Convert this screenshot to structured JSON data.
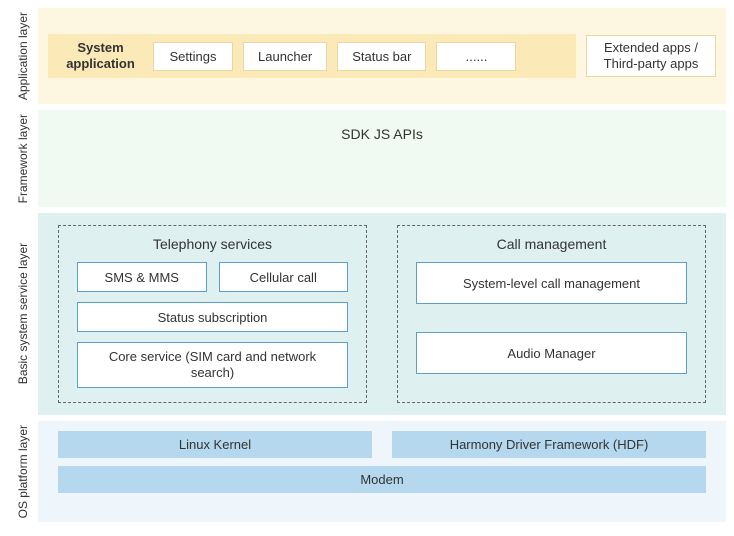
{
  "layers": {
    "application": {
      "label": "Application layer",
      "system_app_title": "System application",
      "apps": [
        "Settings",
        "Launcher",
        "Status bar",
        "......"
      ],
      "extended": "Extended apps / Third-party apps"
    },
    "framework": {
      "label": "Framework layer",
      "content": "SDK JS APIs"
    },
    "service": {
      "label": "Basic system service layer",
      "telephony": {
        "title": "Telephony services",
        "sms": "SMS & MMS",
        "cellular": "Cellular call",
        "status_sub": "Status subscription",
        "core": "Core service (SIM card  and network search)"
      },
      "call": {
        "title": "Call management",
        "sys_call": "System-level call management",
        "audio": "Audio Manager"
      }
    },
    "os": {
      "label": "OS platform layer",
      "kernel": "Linux Kernel",
      "hdf": "Harmony Driver Framework (HDF)",
      "modem": "Modem"
    }
  },
  "colors": {
    "app_bg": "#fdf6e0",
    "app_group_bg": "#fbe9b7",
    "app_box_border": "#e8d8a0",
    "fw_bg": "#f0faf2",
    "svc_bg": "#def0ef",
    "svc_box_border": "#5aa0c8",
    "os_bg": "#eef6fb",
    "os_box_bg": "#b5d8ee"
  }
}
